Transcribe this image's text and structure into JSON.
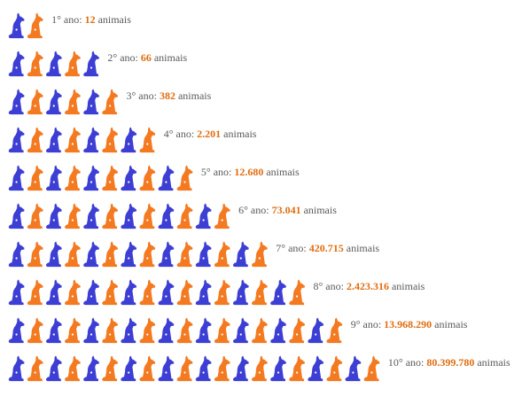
{
  "colors": {
    "blue": "#3d3fd4",
    "orange": "#f47a22",
    "label_text": "#5a5a5a",
    "count_text": "#e06d10"
  },
  "chart_data": {
    "type": "pictogram",
    "icon": "dog-icon",
    "icon_colors": [
      "blue",
      "orange"
    ],
    "title": "",
    "rows": [
      {
        "year": 1,
        "dogs": 2,
        "prefix": "1° ano:",
        "count": "12",
        "suffix": "animais"
      },
      {
        "year": 2,
        "dogs": 5,
        "prefix": "2° ano:",
        "count": "66",
        "suffix": "animais"
      },
      {
        "year": 3,
        "dogs": 6,
        "prefix": "3° ano:",
        "count": "382",
        "suffix": "animais"
      },
      {
        "year": 4,
        "dogs": 8,
        "prefix": "4° ano:",
        "count": "2.201",
        "suffix": "animais"
      },
      {
        "year": 5,
        "dogs": 10,
        "prefix": "5° ano:",
        "count": "12.680",
        "suffix": "animais"
      },
      {
        "year": 6,
        "dogs": 12,
        "prefix": "6° ano:",
        "count": "73.041",
        "suffix": "animais"
      },
      {
        "year": 7,
        "dogs": 14,
        "prefix": "7° ano:",
        "count": "420.715",
        "suffix": "animais"
      },
      {
        "year": 8,
        "dogs": 16,
        "prefix": "8° ano:",
        "count": "2.423.316",
        "suffix": "animais"
      },
      {
        "year": 9,
        "dogs": 18,
        "prefix": "9° ano:",
        "count": "13.968.290",
        "suffix": "animais"
      },
      {
        "year": 10,
        "dogs": 20,
        "prefix": "10° ano:",
        "count": "80.399.780",
        "suffix": "animais"
      }
    ]
  }
}
